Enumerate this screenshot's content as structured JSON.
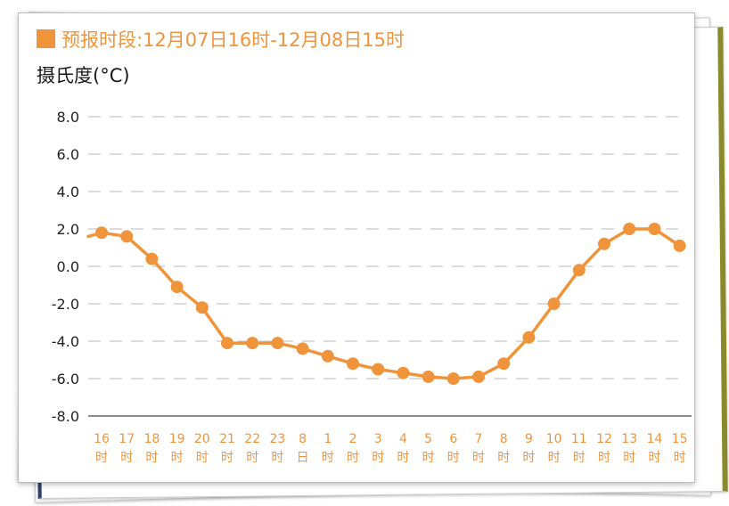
{
  "header": {
    "period_label": "预报时段:12月07日16时-12月08日15时",
    "accent_color": "#f0943c"
  },
  "chart_data": {
    "type": "line",
    "title": "",
    "ylabel": "摄氏度(°C)",
    "xlabel": "",
    "ylim": [
      -8,
      8
    ],
    "yticks": [
      "8.0",
      "6.0",
      "4.0",
      "2.0",
      "0.0",
      "-2.0",
      "-4.0",
      "-6.0",
      "-8.0"
    ],
    "categories": [
      [
        "16",
        "时"
      ],
      [
        "17",
        "时"
      ],
      [
        "18",
        "时"
      ],
      [
        "19",
        "时"
      ],
      [
        "20",
        "时"
      ],
      [
        "21",
        "时"
      ],
      [
        "22",
        "时"
      ],
      [
        "23",
        "时"
      ],
      [
        "8",
        "日"
      ],
      [
        "1",
        "时"
      ],
      [
        "2",
        "时"
      ],
      [
        "3",
        "时"
      ],
      [
        "4",
        "时"
      ],
      [
        "5",
        "时"
      ],
      [
        "6",
        "时"
      ],
      [
        "7",
        "时"
      ],
      [
        "8",
        "时"
      ],
      [
        "9",
        "时"
      ],
      [
        "10",
        "时"
      ],
      [
        "11",
        "时"
      ],
      [
        "12",
        "时"
      ],
      [
        "13",
        "时"
      ],
      [
        "14",
        "时"
      ],
      [
        "15",
        "时"
      ]
    ],
    "series": [
      {
        "values": [
          1.8,
          1.6,
          0.4,
          -1.1,
          -2.2,
          -4.1,
          -4.1,
          -4.1,
          -4.4,
          -4.8,
          -5.2,
          -5.5,
          -5.7,
          -5.9,
          -6.0,
          -5.9,
          -5.2,
          -3.8,
          -2.0,
          -0.2,
          1.2,
          2.0,
          2.0,
          1.1
        ],
        "color": "#f0943c"
      }
    ],
    "leading_value": 1.6,
    "grid": true,
    "grid_style": "dashed"
  }
}
